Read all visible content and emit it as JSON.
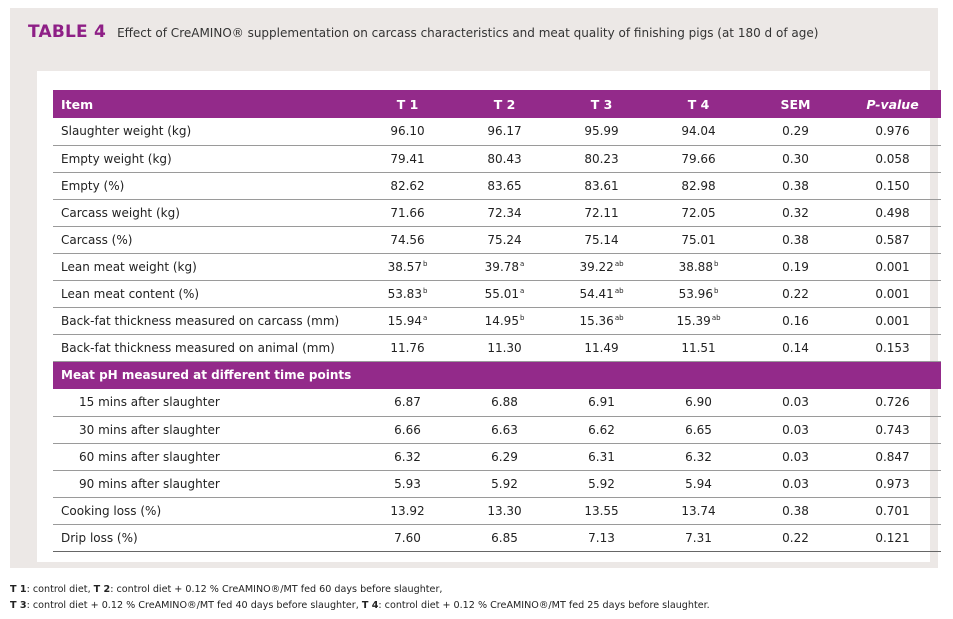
{
  "title": {
    "label": "TABLE 4",
    "text": "Effect of CreAMINO® supplementation on carcass characteristics and meat quality of finishing pigs (at 180 d of age)"
  },
  "table": {
    "headers": [
      "Item",
      "T 1",
      "T 2",
      "T 3",
      "T 4",
      "SEM",
      "P-value"
    ],
    "rows1": [
      {
        "label": "Slaughter weight (kg)",
        "cells": [
          [
            "96.10",
            ""
          ],
          [
            "96.17",
            ""
          ],
          [
            "95.99",
            ""
          ],
          [
            "94.04",
            ""
          ],
          [
            "0.29",
            ""
          ],
          [
            "0.976",
            ""
          ]
        ]
      },
      {
        "label": "Empty weight (kg)",
        "cells": [
          [
            "79.41",
            ""
          ],
          [
            "80.43",
            ""
          ],
          [
            "80.23",
            ""
          ],
          [
            "79.66",
            ""
          ],
          [
            "0.30",
            ""
          ],
          [
            "0.058",
            ""
          ]
        ]
      },
      {
        "label": "Empty (%)",
        "cells": [
          [
            "82.62",
            ""
          ],
          [
            "83.65",
            ""
          ],
          [
            "83.61",
            ""
          ],
          [
            "82.98",
            ""
          ],
          [
            "0.38",
            ""
          ],
          [
            "0.150",
            ""
          ]
        ]
      },
      {
        "label": "Carcass weight (kg)",
        "cells": [
          [
            "71.66",
            ""
          ],
          [
            "72.34",
            ""
          ],
          [
            "72.11",
            ""
          ],
          [
            "72.05",
            ""
          ],
          [
            "0.32",
            ""
          ],
          [
            "0.498",
            ""
          ]
        ]
      },
      {
        "label": "Carcass (%)",
        "cells": [
          [
            "74.56",
            ""
          ],
          [
            "75.24",
            ""
          ],
          [
            "75.14",
            ""
          ],
          [
            "75.01",
            ""
          ],
          [
            "0.38",
            ""
          ],
          [
            "0.587",
            ""
          ]
        ]
      },
      {
        "label": "Lean meat weight (kg)",
        "cells": [
          [
            "38.57",
            "b"
          ],
          [
            "39.78",
            "a"
          ],
          [
            "39.22",
            "ab"
          ],
          [
            "38.88",
            "b"
          ],
          [
            "0.19",
            ""
          ],
          [
            "0.001",
            ""
          ]
        ]
      },
      {
        "label": "Lean meat content (%)",
        "cells": [
          [
            "53.83",
            "b"
          ],
          [
            "55.01",
            "a"
          ],
          [
            "54.41",
            "ab"
          ],
          [
            "53.96",
            "b"
          ],
          [
            "0.22",
            ""
          ],
          [
            "0.001",
            ""
          ]
        ]
      },
      {
        "label": "Back-fat thickness measured on carcass (mm)",
        "cells": [
          [
            "15.94",
            "a"
          ],
          [
            "14.95",
            "b"
          ],
          [
            "15.36",
            "ab"
          ],
          [
            "15.39",
            "ab"
          ],
          [
            "0.16",
            ""
          ],
          [
            "0.001",
            ""
          ]
        ]
      },
      {
        "label": "Back-fat thickness measured on animal (mm)",
        "cells": [
          [
            "11.76",
            ""
          ],
          [
            "11.30",
            ""
          ],
          [
            "11.49",
            ""
          ],
          [
            "11.51",
            ""
          ],
          [
            "0.14",
            ""
          ],
          [
            "0.153",
            ""
          ]
        ]
      }
    ],
    "section_label": "Meat pH measured at different time points",
    "rows2": [
      {
        "label": "15 mins after slaughter",
        "indent": true,
        "cells": [
          [
            "6.87",
            ""
          ],
          [
            "6.88",
            ""
          ],
          [
            "6.91",
            ""
          ],
          [
            "6.90",
            ""
          ],
          [
            "0.03",
            ""
          ],
          [
            "0.726",
            ""
          ]
        ]
      },
      {
        "label": "30 mins after slaughter",
        "indent": true,
        "cells": [
          [
            "6.66",
            ""
          ],
          [
            "6.63",
            ""
          ],
          [
            "6.62",
            ""
          ],
          [
            "6.65",
            ""
          ],
          [
            "0.03",
            ""
          ],
          [
            "0.743",
            ""
          ]
        ]
      },
      {
        "label": "60 mins after slaughter",
        "indent": true,
        "cells": [
          [
            "6.32",
            ""
          ],
          [
            "6.29",
            ""
          ],
          [
            "6.31",
            ""
          ],
          [
            "6.32",
            ""
          ],
          [
            "0.03",
            ""
          ],
          [
            "0.847",
            ""
          ]
        ]
      },
      {
        "label": "90 mins after slaughter",
        "indent": true,
        "cells": [
          [
            "5.93",
            ""
          ],
          [
            "5.92",
            ""
          ],
          [
            "5.92",
            ""
          ],
          [
            "5.94",
            ""
          ],
          [
            "0.03",
            ""
          ],
          [
            "0.973",
            ""
          ]
        ]
      },
      {
        "label": "Cooking loss (%)",
        "cells": [
          [
            "13.92",
            ""
          ],
          [
            "13.30",
            ""
          ],
          [
            "13.55",
            ""
          ],
          [
            "13.74",
            ""
          ],
          [
            "0.38",
            ""
          ],
          [
            "0.701",
            ""
          ]
        ]
      },
      {
        "label": "Drip loss (%)",
        "cells": [
          [
            "7.60",
            ""
          ],
          [
            "6.85",
            ""
          ],
          [
            "7.13",
            ""
          ],
          [
            "7.31",
            ""
          ],
          [
            "0.22",
            ""
          ],
          [
            "0.121",
            ""
          ]
        ]
      }
    ]
  },
  "footnotes": {
    "line1": [
      {
        "key": "T 1",
        "text": ": control diet, "
      },
      {
        "key": "T 2",
        "text": ": control diet + 0.12 % CreAMINO®/MT fed 60 days before slaughter,"
      }
    ],
    "line2": [
      {
        "key": "T 3",
        "text": ": control diet + 0.12 % CreAMINO®/MT fed 40 days before slaughter, "
      },
      {
        "key": "T 4",
        "text": ": control diet + 0.12 % CreAMINO®/MT fed 25 days before slaughter."
      }
    ]
  },
  "colors": {
    "accent": "#932a8a",
    "title": "#8e1f86",
    "panel": "#ece8e6"
  }
}
